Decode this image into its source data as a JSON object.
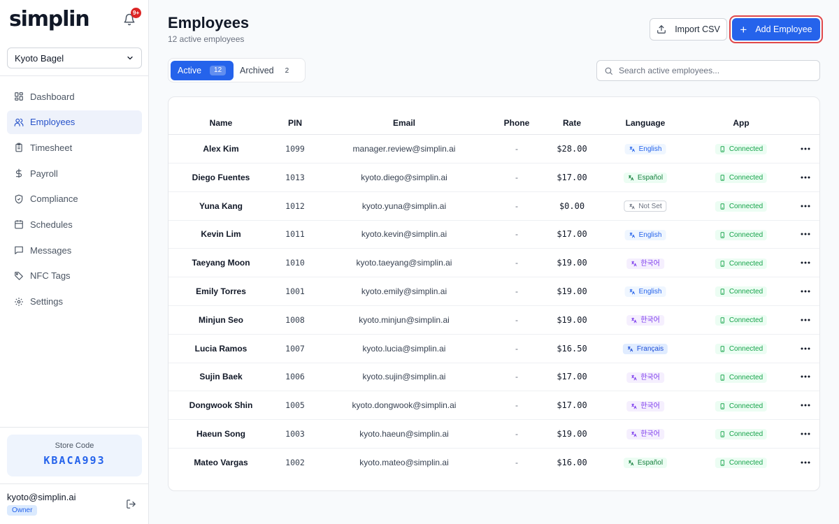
{
  "app": {
    "logo": "simplin",
    "notification_badge": "9+"
  },
  "sidebar": {
    "store_name": "Kyoto Bagel",
    "items": [
      {
        "label": "Dashboard",
        "icon": "dashboard-icon"
      },
      {
        "label": "Employees",
        "icon": "users-icon",
        "active": true
      },
      {
        "label": "Timesheet",
        "icon": "clipboard-icon"
      },
      {
        "label": "Payroll",
        "icon": "dollar-icon"
      },
      {
        "label": "Compliance",
        "icon": "shield-check-icon"
      },
      {
        "label": "Schedules",
        "icon": "calendar-icon"
      },
      {
        "label": "Messages",
        "icon": "message-icon"
      },
      {
        "label": "NFC Tags",
        "icon": "tag-icon"
      },
      {
        "label": "Settings",
        "icon": "gear-icon"
      }
    ],
    "store_code_label": "Store Code",
    "store_code": "KBACA993",
    "user_email": "kyoto@simplin.ai",
    "user_role": "Owner"
  },
  "header": {
    "title": "Employees",
    "subtitle": "12 active employees",
    "import_label": "Import CSV",
    "add_label": "Add Employee"
  },
  "tabs": {
    "active_label": "Active",
    "active_count": "12",
    "archived_label": "Archived",
    "archived_count": "2"
  },
  "search": {
    "placeholder": "Search active employees..."
  },
  "table": {
    "columns": [
      "Name",
      "PIN",
      "Email",
      "Phone",
      "Rate",
      "Language",
      "App"
    ],
    "rows": [
      {
        "name": "Alex Kim",
        "pin": "1099",
        "email": "manager.review@simplin.ai",
        "phone": "-",
        "rate": "$28.00",
        "language": "English",
        "lang_code": "en",
        "app": "Connected"
      },
      {
        "name": "Diego Fuentes",
        "pin": "1013",
        "email": "kyoto.diego@simplin.ai",
        "phone": "-",
        "rate": "$17.00",
        "language": "Español",
        "lang_code": "es",
        "app": "Connected"
      },
      {
        "name": "Yuna Kang",
        "pin": "1012",
        "email": "kyoto.yuna@simplin.ai",
        "phone": "-",
        "rate": "$0.00",
        "language": "Not Set",
        "lang_code": "none",
        "app": "Connected"
      },
      {
        "name": "Kevin Lim",
        "pin": "1011",
        "email": "kyoto.kevin@simplin.ai",
        "phone": "-",
        "rate": "$17.00",
        "language": "English",
        "lang_code": "en",
        "app": "Connected"
      },
      {
        "name": "Taeyang Moon",
        "pin": "1010",
        "email": "kyoto.taeyang@simplin.ai",
        "phone": "-",
        "rate": "$19.00",
        "language": "한국어",
        "lang_code": "ko",
        "app": "Connected"
      },
      {
        "name": "Emily Torres",
        "pin": "1001",
        "email": "kyoto.emily@simplin.ai",
        "phone": "-",
        "rate": "$19.00",
        "language": "English",
        "lang_code": "en",
        "app": "Connected"
      },
      {
        "name": "Minjun Seo",
        "pin": "1008",
        "email": "kyoto.minjun@simplin.ai",
        "phone": "-",
        "rate": "$19.00",
        "language": "한국어",
        "lang_code": "ko",
        "app": "Connected"
      },
      {
        "name": "Lucia Ramos",
        "pin": "1007",
        "email": "kyoto.lucia@simplin.ai",
        "phone": "-",
        "rate": "$16.50",
        "language": "Français",
        "lang_code": "fr",
        "app": "Connected"
      },
      {
        "name": "Sujin Baek",
        "pin": "1006",
        "email": "kyoto.sujin@simplin.ai",
        "phone": "-",
        "rate": "$17.00",
        "language": "한국어",
        "lang_code": "ko",
        "app": "Connected"
      },
      {
        "name": "Dongwook Shin",
        "pin": "1005",
        "email": "kyoto.dongwook@simplin.ai",
        "phone": "-",
        "rate": "$17.00",
        "language": "한국어",
        "lang_code": "ko",
        "app": "Connected"
      },
      {
        "name": "Haeun Song",
        "pin": "1003",
        "email": "kyoto.haeun@simplin.ai",
        "phone": "-",
        "rate": "$19.00",
        "language": "한국어",
        "lang_code": "ko",
        "app": "Connected"
      },
      {
        "name": "Mateo Vargas",
        "pin": "1002",
        "email": "kyoto.mateo@simplin.ai",
        "phone": "-",
        "rate": "$16.00",
        "language": "Español",
        "lang_code": "es",
        "app": "Connected"
      }
    ]
  },
  "colors": {
    "accent": "#2563eb",
    "highlight_border": "#e0484b",
    "connected": "#16a34a",
    "badge": "#dc2626"
  }
}
